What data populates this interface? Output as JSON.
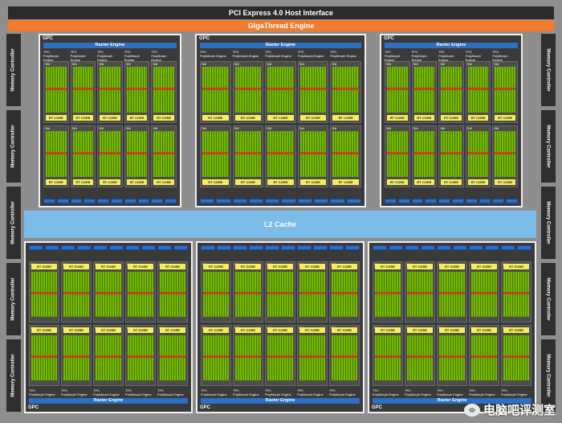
{
  "pcie_label": "PCI Express 4.0 Host Interface",
  "gigathread_label": "GigaThread Engine",
  "l2_label": "L2 Cache",
  "memory_controller_label": "Memory Controller",
  "gpc_label": "GPC",
  "raster_engine_label": "Raster Engine",
  "tpc_label": "TPC",
  "polymorph_label": "PolyMorph Engine",
  "sm_label": "SM",
  "rt_core_label": "RT CORE",
  "watermark_text": "电脑吧评测室",
  "colors": {
    "pcie": "#2b2b2b",
    "gigathread": "#f47b2a",
    "l2": "#7bbde8",
    "raster": "#2c6fc6",
    "cuda": "#74b800",
    "rt_core": "#f7ef5a"
  }
}
